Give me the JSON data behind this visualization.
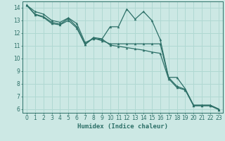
{
  "title": "",
  "xlabel": "Humidex (Indice chaleur)",
  "ylabel": "",
  "bg_color": "#cce8e4",
  "line_color": "#2d7068",
  "grid_color": "#b0d8d2",
  "ylim": [
    5.7,
    14.5
  ],
  "xlim": [
    -0.5,
    23.5
  ],
  "yticks": [
    6,
    7,
    8,
    9,
    10,
    11,
    12,
    13,
    14
  ],
  "xticks": [
    0,
    1,
    2,
    3,
    4,
    5,
    6,
    7,
    8,
    9,
    10,
    11,
    12,
    13,
    14,
    15,
    16,
    17,
    18,
    19,
    20,
    21,
    22,
    23
  ],
  "series1": [
    14.2,
    13.7,
    13.5,
    13.0,
    12.85,
    13.2,
    12.75,
    11.25,
    11.55,
    11.5,
    12.5,
    12.5,
    13.9,
    13.1,
    13.7,
    13.0,
    11.5,
    8.5,
    8.5,
    7.6,
    6.3,
    6.3,
    6.3,
    6.0
  ],
  "series2": [
    14.2,
    13.5,
    13.3,
    12.85,
    12.7,
    13.15,
    12.5,
    11.1,
    11.6,
    11.4,
    11.15,
    11.15,
    11.15,
    11.15,
    11.15,
    11.15,
    11.15,
    8.5,
    7.8,
    7.55,
    6.3,
    6.3,
    6.3,
    6.0
  ],
  "series3": [
    14.2,
    13.45,
    13.25,
    12.75,
    12.65,
    13.0,
    12.4,
    11.1,
    11.65,
    11.55,
    11.05,
    10.95,
    10.85,
    10.75,
    10.65,
    10.5,
    10.4,
    8.4,
    7.7,
    7.5,
    6.25,
    6.25,
    6.25,
    5.95
  ]
}
